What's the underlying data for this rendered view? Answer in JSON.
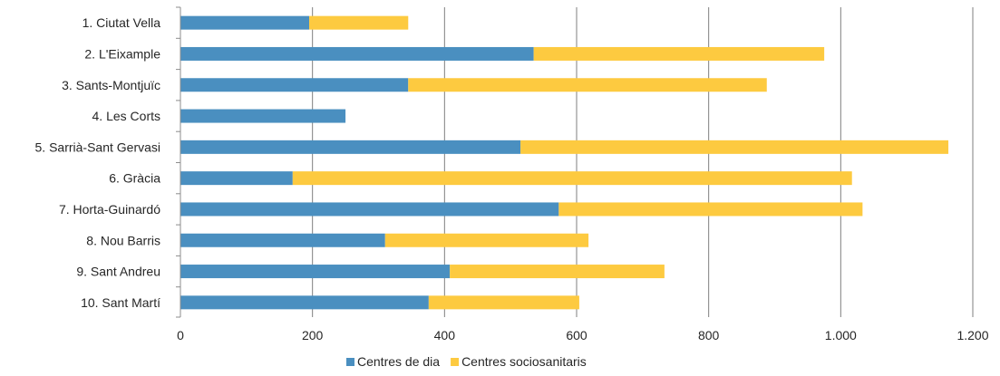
{
  "chart_data": {
    "type": "bar",
    "orientation": "horizontal",
    "stacked": true,
    "categories": [
      "1. Ciutat Vella",
      "2. L'Eixample",
      "3. Sants-Montjuïc",
      "4. Les Corts",
      "5. Sarrià-Sant Gervasi",
      "6. Gràcia",
      "7. Horta-Guinardó",
      "8. Nou Barris",
      "9. Sant Andreu",
      "10. Sant Martí"
    ],
    "series": [
      {
        "name": "Centres de dia",
        "color": "#4a8fc0",
        "values": [
          195,
          535,
          345,
          250,
          515,
          170,
          573,
          310,
          408,
          376
        ]
      },
      {
        "name": "Centres sociosanitaris",
        "color": "#fdca40",
        "values": [
          150,
          440,
          543,
          0,
          648,
          847,
          460,
          308,
          325,
          228
        ]
      }
    ],
    "xlim": [
      0,
      1200
    ],
    "xticks": [
      0,
      200,
      400,
      600,
      800,
      1000,
      1200
    ],
    "xtick_labels": [
      "0",
      "200",
      "400",
      "600",
      "800",
      "1.000",
      "1.200"
    ],
    "grid": "vertical",
    "legend_position": "bottom",
    "title": "",
    "xlabel": "",
    "ylabel": ""
  }
}
